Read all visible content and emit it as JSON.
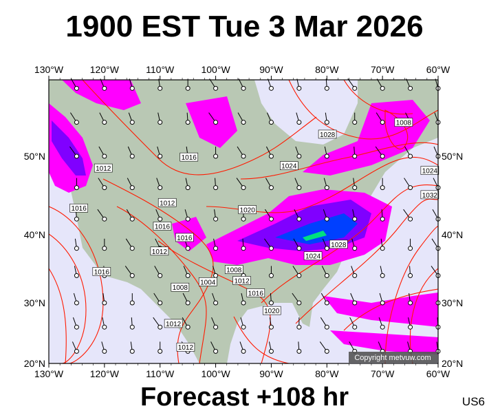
{
  "title": "1900 EST Tue 3 Mar 2026",
  "footer": "Forecast +108 hr",
  "region_code": "US6",
  "copyright": "Copyright metvuw.com",
  "map": {
    "lon_range": [
      -130,
      -60
    ],
    "lat_range": [
      20,
      59
    ],
    "lon_ticks": [
      "130°W",
      "120°W",
      "110°W",
      "100°W",
      "90°W",
      "80°W",
      "70°W",
      "60°W"
    ],
    "lat_ticks": [
      "50°N",
      "40°N",
      "30°N",
      "20°N"
    ],
    "colors": {
      "ocean": "#e6e6fa",
      "land": "#b9c8b4",
      "isobar": "#ff1a00",
      "precip_light": "#ff00ff",
      "precip_mid": "#8000ff",
      "precip_heavy": "#0040ff",
      "precip_extreme": "#00ff80"
    },
    "isobar_labels": [
      {
        "text": "1008",
        "lon": -66.2,
        "lat": 54.0
      },
      {
        "text": "1028",
        "lon": -79.9,
        "lat": 52.6
      },
      {
        "text": "1016",
        "lon": -104.8,
        "lat": 49.9
      },
      {
        "text": "1012",
        "lon": -120.2,
        "lat": 48.5
      },
      {
        "text": "1024",
        "lon": -86.8,
        "lat": 48.8
      },
      {
        "text": "1024",
        "lon": -61.5,
        "lat": 48.2
      },
      {
        "text": "1032",
        "lon": -61.5,
        "lat": 45.1
      },
      {
        "text": "1012",
        "lon": -108.7,
        "lat": 44.1
      },
      {
        "text": "1016",
        "lon": -124.6,
        "lat": 43.4
      },
      {
        "text": "1020",
        "lon": -94.3,
        "lat": 43.2
      },
      {
        "text": "1016",
        "lon": -109.6,
        "lat": 41.1
      },
      {
        "text": "1016",
        "lon": -105.6,
        "lat": 39.6
      },
      {
        "text": "1012",
        "lon": -110.1,
        "lat": 37.6
      },
      {
        "text": "1028",
        "lon": -77.9,
        "lat": 38.6
      },
      {
        "text": "1024",
        "lon": -82.5,
        "lat": 36.9
      },
      {
        "text": "1016",
        "lon": -120.5,
        "lat": 34.6
      },
      {
        "text": "1008",
        "lon": -96.7,
        "lat": 34.9
      },
      {
        "text": "1012",
        "lon": -95.3,
        "lat": 34.6
      },
      {
        "text": "1004",
        "lon": -101.4,
        "lat": 33.1
      },
      {
        "text": "1016",
        "lon": -92.8,
        "lat": 34.1
      },
      {
        "text": "1008",
        "lon": -106.4,
        "lat": 32.3
      },
      {
        "text": "1020",
        "lon": -89.9,
        "lat": 31.5
      },
      {
        "text": "1012",
        "lon": -107.6,
        "lat": 26.6
      },
      {
        "text": "1012",
        "lon": -105.4,
        "lat": 22.7
      }
    ]
  }
}
